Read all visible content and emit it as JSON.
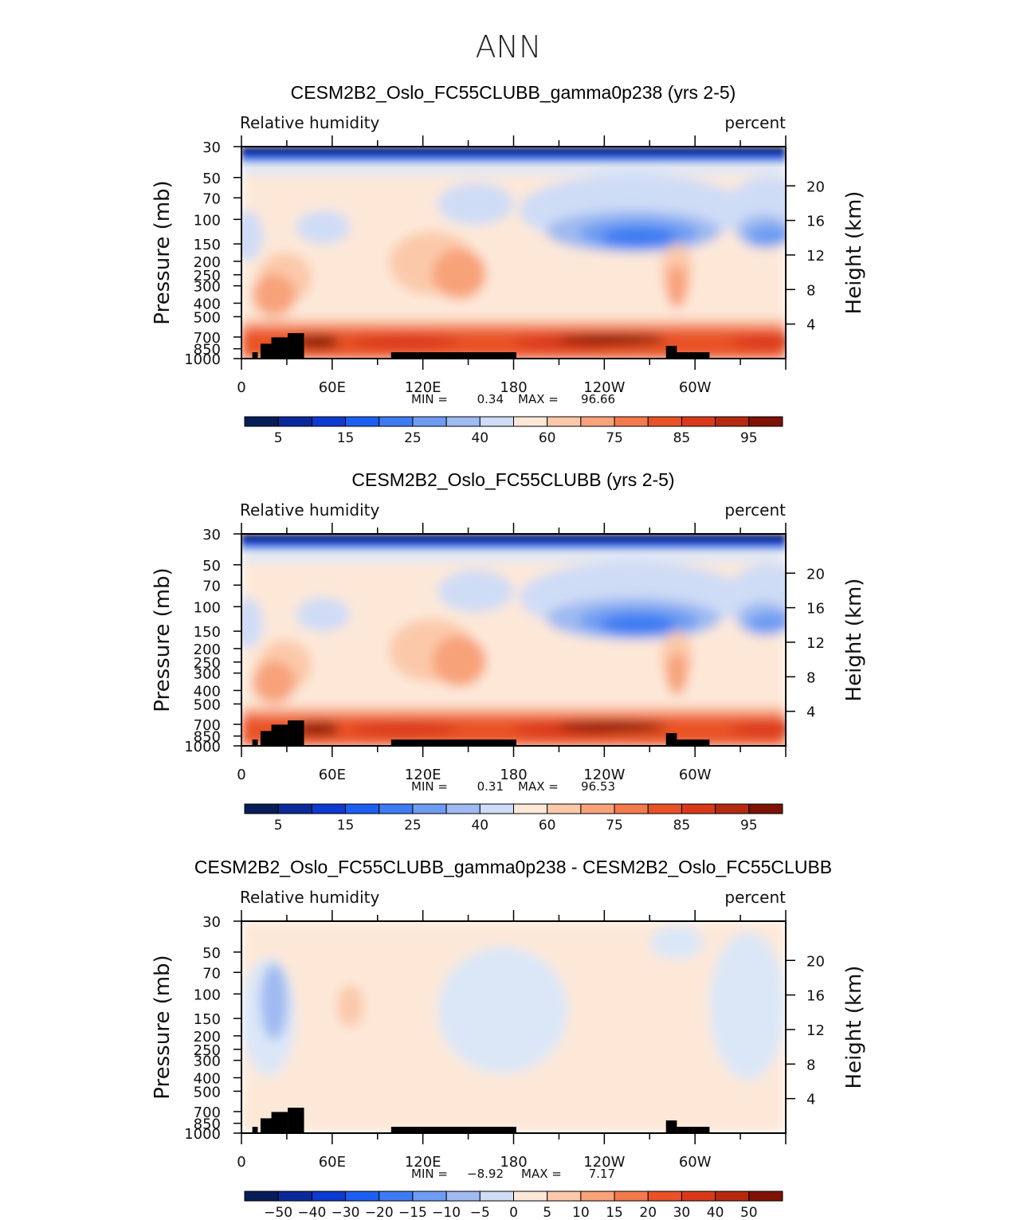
{
  "page_title": "ANN",
  "colors": {
    "rh_levels": [
      "#081d58",
      "#0b2a9a",
      "#0d3ad0",
      "#1d5ff0",
      "#3e7bf2",
      "#6e9cf2",
      "#9ebaf1",
      "#cfdcf6",
      "#dbe7f7",
      "#fde8d8",
      "#fbc9aa",
      "#f8a27a",
      "#f27a4d",
      "#e95227",
      "#d9391a",
      "#b52a0f",
      "#7d1205"
    ],
    "diff_levels": [
      "#081d58",
      "#0b2a9a",
      "#0d3ad0",
      "#1d5ff0",
      "#3e7bf2",
      "#6e9cf2",
      "#9ebaf1",
      "#cfdcf6",
      "#dbe7f7",
      "#fde8d8",
      "#fbc9aa",
      "#f8a27a",
      "#f27a4d",
      "#e95227",
      "#d9391a",
      "#b52a0f",
      "#7d1205"
    ],
    "topography": "#000000"
  },
  "chart_data": [
    {
      "type": "heatmap",
      "title": "CESM2B2_Oslo_FC55CLUBB_gamma0p238 (yrs 2-5)",
      "left_label": "Relative humidity",
      "right_label": "percent",
      "ylabel": "Pressure (mb)",
      "y2label": "Height (km)",
      "x_ticks": [
        "0",
        "60E",
        "120E",
        "180",
        "120W",
        "60W"
      ],
      "x_range": [
        0,
        360
      ],
      "p_ticks": [
        "30",
        "50",
        "70",
        "100",
        "150",
        "200",
        "250",
        "300",
        "400",
        "500",
        "700",
        "850",
        "1000"
      ],
      "p_values": [
        30,
        50,
        70,
        100,
        150,
        200,
        250,
        300,
        400,
        500,
        700,
        850,
        1000
      ],
      "p_range": [
        30,
        1000
      ],
      "height_ticks": [
        "20",
        "16",
        "12",
        "8",
        "4"
      ],
      "height_values": [
        20,
        16,
        12,
        8,
        4
      ],
      "min_label": "MIN =",
      "min_value": "0.34",
      "max_label": "MAX =",
      "max_value": "96.66",
      "colorbar_labels": [
        "5",
        "15",
        "25",
        "40",
        "60",
        "75",
        "85",
        "95"
      ]
    },
    {
      "type": "heatmap",
      "title": "CESM2B2_Oslo_FC55CLUBB (yrs 2-5)",
      "left_label": "Relative humidity",
      "right_label": "percent",
      "ylabel": "Pressure (mb)",
      "y2label": "Height (km)",
      "x_ticks": [
        "0",
        "60E",
        "120E",
        "180",
        "120W",
        "60W"
      ],
      "x_range": [
        0,
        360
      ],
      "p_ticks": [
        "30",
        "50",
        "70",
        "100",
        "150",
        "200",
        "250",
        "300",
        "400",
        "500",
        "700",
        "850",
        "1000"
      ],
      "p_values": [
        30,
        50,
        70,
        100,
        150,
        200,
        250,
        300,
        400,
        500,
        700,
        850,
        1000
      ],
      "p_range": [
        30,
        1000
      ],
      "height_ticks": [
        "20",
        "16",
        "12",
        "8",
        "4"
      ],
      "height_values": [
        20,
        16,
        12,
        8,
        4
      ],
      "min_label": "MIN =",
      "min_value": "0.31",
      "max_label": "MAX =",
      "max_value": "96.53",
      "colorbar_labels": [
        "5",
        "15",
        "25",
        "40",
        "60",
        "75",
        "85",
        "95"
      ]
    },
    {
      "type": "heatmap",
      "title": "CESM2B2_Oslo_FC55CLUBB_gamma0p238 - CESM2B2_Oslo_FC55CLUBB",
      "left_label": "Relative humidity",
      "right_label": "percent",
      "ylabel": "Pressure (mb)",
      "y2label": "Height (km)",
      "x_ticks": [
        "0",
        "60E",
        "120E",
        "180",
        "120W",
        "60W"
      ],
      "x_range": [
        0,
        360
      ],
      "p_ticks": [
        "30",
        "50",
        "70",
        "100",
        "150",
        "200",
        "250",
        "300",
        "400",
        "500",
        "700",
        "850",
        "1000"
      ],
      "p_values": [
        30,
        50,
        70,
        100,
        150,
        200,
        250,
        300,
        400,
        500,
        700,
        850,
        1000
      ],
      "p_range": [
        30,
        1000
      ],
      "height_ticks": [
        "20",
        "16",
        "12",
        "8",
        "4"
      ],
      "height_values": [
        20,
        16,
        12,
        8,
        4
      ],
      "min_label": "MIN =",
      "min_value": "−8.92",
      "max_label": "MAX =",
      "max_value": "7.17",
      "colorbar_labels": [
        "−50",
        "−40",
        "−30",
        "−20",
        "−15",
        "−10",
        "−5",
        "0",
        "5",
        "10",
        "15",
        "20",
        "30",
        "40",
        "50"
      ]
    }
  ]
}
